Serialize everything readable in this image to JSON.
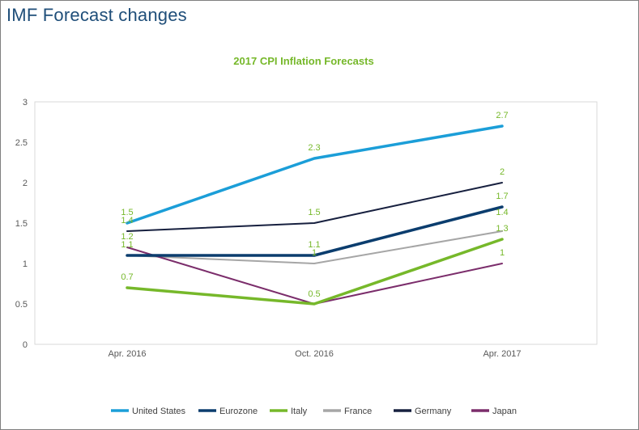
{
  "page": {
    "title": "IMF Forecast changes"
  },
  "chart_data": {
    "type": "line",
    "title": "2017 CPI Inflation Forecasts",
    "categories": [
      "Apr. 2016",
      "Oct. 2016",
      "Apr. 2017"
    ],
    "ylim": [
      0,
      3
    ],
    "yticks": [
      "0",
      "0.5",
      "1",
      "1.5",
      "2",
      "2.5",
      "3"
    ],
    "ytick_values": [
      0,
      0.5,
      1,
      1.5,
      2,
      2.5,
      3
    ],
    "xlabel": "",
    "ylabel": "",
    "grid": false,
    "legend": "bottom",
    "series": [
      {
        "name": "United States",
        "color": "#1b9ed8",
        "values": [
          1.5,
          2.3,
          2.7
        ],
        "labels": [
          "1.5",
          "2.3",
          "2.7"
        ]
      },
      {
        "name": "Eurozone",
        "color": "#0b3d6e",
        "values": [
          1.1,
          1.1,
          1.7
        ],
        "labels": [
          "",
          "1.1",
          "1.7"
        ]
      },
      {
        "name": "Italy",
        "color": "#76b82a",
        "values": [
          0.7,
          0.5,
          1.3
        ],
        "labels": [
          "0.7",
          "0.5",
          "1.3"
        ]
      },
      {
        "name": "France",
        "color": "#a6a6a6",
        "values": [
          1.1,
          1.0,
          1.4
        ],
        "labels": [
          "1.1",
          "1",
          "1.4"
        ]
      },
      {
        "name": "Germany",
        "color": "#17203f",
        "values": [
          1.4,
          1.5,
          2.0
        ],
        "labels": [
          "1.4",
          "1.5",
          "2"
        ]
      },
      {
        "name": "Japan",
        "color": "#7b2d6b",
        "values": [
          1.2,
          0.5,
          1.0
        ],
        "labels": [
          "1.2",
          "",
          "1"
        ]
      }
    ]
  }
}
